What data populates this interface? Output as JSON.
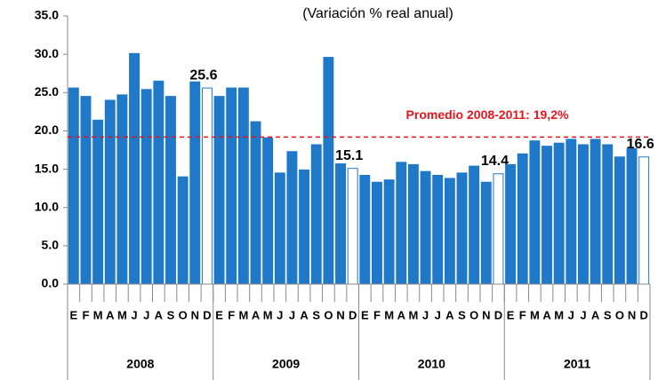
{
  "chart_data": {
    "type": "bar",
    "title": "(Variación % real anual)",
    "categories": [
      "E",
      "F",
      "M",
      "A",
      "M",
      "J",
      "J",
      "A",
      "S",
      "O",
      "N",
      "D",
      "E",
      "F",
      "M",
      "A",
      "M",
      "J",
      "J",
      "A",
      "S",
      "O",
      "N",
      "D",
      "E",
      "F",
      "M",
      "A",
      "M",
      "J",
      "J",
      "A",
      "S",
      "O",
      "N",
      "D",
      "E",
      "F",
      "M",
      "A",
      "M",
      "J",
      "J",
      "A",
      "S",
      "O",
      "N",
      "D"
    ],
    "groups": [
      "2008",
      "2009",
      "2010",
      "2011"
    ],
    "values": [
      25.6,
      24.5,
      21.4,
      24.0,
      24.7,
      30.1,
      25.4,
      26.5,
      24.5,
      14.0,
      26.4,
      25.6,
      24.5,
      25.6,
      25.6,
      21.2,
      19.1,
      14.5,
      17.3,
      14.9,
      18.2,
      29.6,
      15.7,
      15.1,
      14.2,
      13.3,
      13.6,
      15.9,
      15.6,
      14.7,
      14.2,
      13.8,
      14.5,
      15.4,
      13.3,
      14.4,
      15.6,
      17.0,
      18.7,
      18.0,
      18.4,
      18.9,
      18.2,
      18.9,
      18.2,
      16.6,
      17.7,
      16.6
    ],
    "value_labels": [
      null,
      null,
      null,
      null,
      null,
      null,
      null,
      null,
      null,
      null,
      null,
      "25.6",
      null,
      null,
      null,
      null,
      null,
      null,
      null,
      null,
      null,
      null,
      null,
      "15.1",
      null,
      null,
      null,
      null,
      null,
      null,
      null,
      null,
      null,
      null,
      null,
      "14.4",
      null,
      null,
      null,
      null,
      null,
      null,
      null,
      null,
      null,
      null,
      null,
      "16.6"
    ],
    "color": "#1f78c8",
    "fill_colors": [
      "#1f78c8",
      "#1f78c8",
      "#1f78c8",
      "#1f78c8",
      "#1f78c8",
      "#1f78c8",
      "#1f78c8",
      "#1f78c8",
      "#1f78c8",
      "#1f78c8",
      "#1f78c8",
      "#ffffff",
      "#1f78c8",
      "#1f78c8",
      "#1f78c8",
      "#1f78c8",
      "#1f78c8",
      "#1f78c8",
      "#1f78c8",
      "#1f78c8",
      "#1f78c8",
      "#1f78c8",
      "#1f78c8",
      "#ffffff",
      "#1f78c8",
      "#1f78c8",
      "#1f78c8",
      "#1f78c8",
      "#1f78c8",
      "#1f78c8",
      "#1f78c8",
      "#1f78c8",
      "#1f78c8",
      "#1f78c8",
      "#1f78c8",
      "#ffffff",
      "#1f78c8",
      "#1f78c8",
      "#1f78c8",
      "#1f78c8",
      "#1f78c8",
      "#1f78c8",
      "#1f78c8",
      "#1f78c8",
      "#1f78c8",
      "#1f78c8",
      "#1f78c8",
      "#ffffff"
    ],
    "ylim": [
      0,
      35
    ],
    "yticks": [
      {
        "value": 0,
        "label": "0.0"
      },
      {
        "value": 5,
        "label": "5.0"
      },
      {
        "value": 10,
        "label": "10.0"
      },
      {
        "value": 15,
        "label": "15.0"
      },
      {
        "value": 20,
        "label": "20.0"
      },
      {
        "value": 25,
        "label": "25.0"
      },
      {
        "value": 30,
        "label": "30.0"
      },
      {
        "value": 35,
        "label": "35.0"
      }
    ],
    "reference_line": {
      "value": 19.2,
      "label": "Promedio 2008-2011: 19,2%",
      "color": "#e8141c"
    }
  }
}
